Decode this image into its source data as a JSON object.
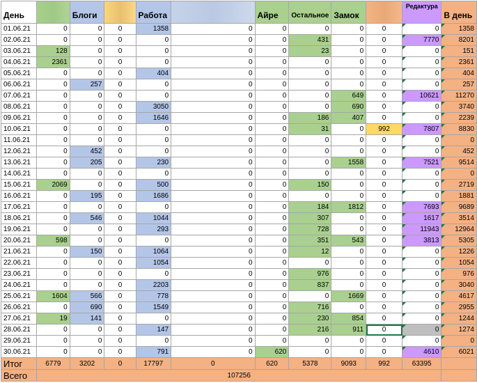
{
  "headers": [
    "День",
    "",
    "Блоги",
    "",
    "Работа",
    "",
    "Айре",
    "Остальное",
    "Замок",
    "",
    "Редактура",
    "В день"
  ],
  "rows": [
    {
      "date": "01.06.21",
      "v": [
        "0",
        "0",
        "0",
        "1358",
        "0",
        "0",
        "0",
        "0",
        "0",
        "0",
        "1358"
      ]
    },
    {
      "date": "02.06.21",
      "v": [
        "0",
        "0",
        "0",
        "0",
        "0",
        "0",
        "431",
        "0",
        "0",
        "7770",
        "8201"
      ]
    },
    {
      "date": "03.06.21",
      "v": [
        "128",
        "0",
        "0",
        "0",
        "0",
        "0",
        "23",
        "0",
        "0",
        "0",
        "151"
      ]
    },
    {
      "date": "04.06.21",
      "v": [
        "2361",
        "0",
        "0",
        "0",
        "0",
        "0",
        "0",
        "0",
        "0",
        "0",
        "2361"
      ]
    },
    {
      "date": "05.06.21",
      "v": [
        "0",
        "0",
        "0",
        "404",
        "0",
        "0",
        "0",
        "0",
        "0",
        "0",
        "404"
      ]
    },
    {
      "date": "06.06.21",
      "v": [
        "0",
        "257",
        "0",
        "0",
        "0",
        "0",
        "0",
        "0",
        "0",
        "0",
        "257"
      ]
    },
    {
      "date": "07.06.21",
      "v": [
        "0",
        "0",
        "0",
        "0",
        "0",
        "0",
        "0",
        "649",
        "0",
        "10621",
        "11270"
      ]
    },
    {
      "date": "08.06.21",
      "v": [
        "0",
        "0",
        "0",
        "3050",
        "0",
        "0",
        "0",
        "690",
        "0",
        "0",
        "3740"
      ]
    },
    {
      "date": "09.06.21",
      "v": [
        "0",
        "0",
        "0",
        "1646",
        "0",
        "0",
        "186",
        "407",
        "0",
        "0",
        "2239"
      ]
    },
    {
      "date": "10.06.21",
      "v": [
        "0",
        "0",
        "0",
        "0",
        "0",
        "0",
        "31",
        "0",
        "992",
        "7807",
        "8830"
      ]
    },
    {
      "date": "11.06.21",
      "v": [
        "0",
        "0",
        "0",
        "0",
        "0",
        "0",
        "0",
        "0",
        "0",
        "0",
        "0"
      ]
    },
    {
      "date": "12.06.21",
      "v": [
        "0",
        "452",
        "0",
        "0",
        "0",
        "0",
        "0",
        "0",
        "0",
        "0",
        "452"
      ]
    },
    {
      "date": "13.06.21",
      "v": [
        "0",
        "205",
        "0",
        "230",
        "0",
        "0",
        "0",
        "1558",
        "0",
        "7521",
        "9514"
      ]
    },
    {
      "date": "14.06.21",
      "v": [
        "0",
        "0",
        "0",
        "0",
        "0",
        "0",
        "0",
        "0",
        "0",
        "0",
        "0"
      ]
    },
    {
      "date": "15.06.21",
      "v": [
        "2069",
        "0",
        "0",
        "500",
        "0",
        "0",
        "150",
        "0",
        "0",
        "0",
        "2719"
      ]
    },
    {
      "date": "16.06.21",
      "v": [
        "0",
        "195",
        "0",
        "1686",
        "0",
        "0",
        "0",
        "0",
        "0",
        "0",
        "1881"
      ]
    },
    {
      "date": "17.06.21",
      "v": [
        "0",
        "0",
        "0",
        "0",
        "0",
        "0",
        "184",
        "1812",
        "0",
        "7693",
        "9689"
      ]
    },
    {
      "date": "18.06.21",
      "v": [
        "0",
        "546",
        "0",
        "1044",
        "0",
        "0",
        "307",
        "0",
        "0",
        "1617",
        "3514"
      ]
    },
    {
      "date": "19.06.21",
      "v": [
        "0",
        "0",
        "0",
        "293",
        "0",
        "0",
        "728",
        "0",
        "0",
        "11943",
        "12964"
      ]
    },
    {
      "date": "20.06.21",
      "v": [
        "598",
        "0",
        "0",
        "0",
        "0",
        "0",
        "351",
        "543",
        "0",
        "3813",
        "5305"
      ]
    },
    {
      "date": "21.06.21",
      "v": [
        "0",
        "150",
        "0",
        "1064",
        "0",
        "0",
        "12",
        "0",
        "0",
        "0",
        "1226"
      ]
    },
    {
      "date": "22.06.21",
      "v": [
        "0",
        "0",
        "0",
        "1054",
        "0",
        "0",
        "0",
        "0",
        "0",
        "0",
        "1054"
      ]
    },
    {
      "date": "23.06.21",
      "v": [
        "0",
        "0",
        "0",
        "0",
        "0",
        "0",
        "976",
        "0",
        "0",
        "0",
        "976"
      ]
    },
    {
      "date": "24.06.21",
      "v": [
        "0",
        "0",
        "0",
        "2203",
        "0",
        "0",
        "837",
        "0",
        "0",
        "0",
        "3040"
      ]
    },
    {
      "date": "25.06.21",
      "v": [
        "1604",
        "566",
        "0",
        "778",
        "0",
        "0",
        "0",
        "1669",
        "0",
        "0",
        "4617"
      ]
    },
    {
      "date": "26.06.21",
      "v": [
        "0",
        "690",
        "0",
        "1549",
        "0",
        "0",
        "716",
        "0",
        "0",
        "0",
        "2955"
      ]
    },
    {
      "date": "27.06.21",
      "v": [
        "19",
        "141",
        "0",
        "0",
        "0",
        "0",
        "230",
        "854",
        "0",
        "0",
        "1244"
      ]
    },
    {
      "date": "28.06.21",
      "v": [
        "0",
        "0",
        "0",
        "147",
        "0",
        "0",
        "216",
        "911",
        "0",
        "0",
        "1274"
      ]
    },
    {
      "date": "29.06.21",
      "v": [
        "0",
        "0",
        "0",
        "0",
        "0",
        "0",
        "0",
        "0",
        "0",
        "0",
        "0"
      ]
    },
    {
      "date": "30.06.21",
      "v": [
        "0",
        "0",
        "0",
        "791",
        "0",
        "620",
        "0",
        "0",
        "0",
        "4610",
        "6021"
      ]
    }
  ],
  "total": {
    "label": "Итог",
    "v": [
      "6779",
      "3202",
      "0",
      "17797",
      "0",
      "620",
      "5378",
      "9093",
      "992",
      "63395",
      ""
    ]
  },
  "grand": {
    "label": "Всего",
    "value": "107256"
  }
}
